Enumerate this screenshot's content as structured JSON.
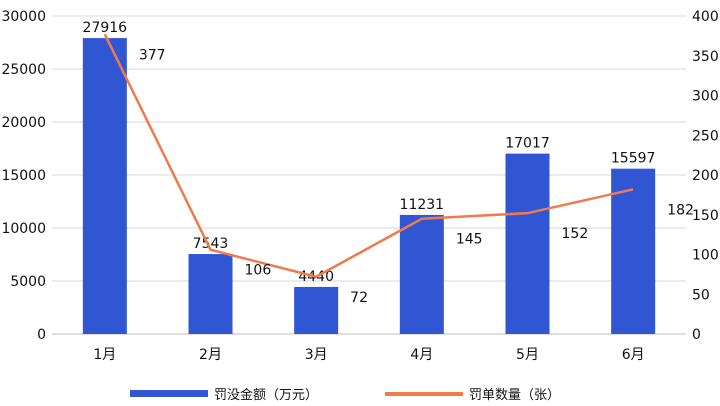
{
  "chart_data": {
    "type": "bar",
    "categories": [
      "1月",
      "2月",
      "3月",
      "4月",
      "5月",
      "6月"
    ],
    "series": [
      {
        "name": "罚没金额（万元）",
        "type": "bar",
        "axis": "left",
        "values": [
          27916,
          7543,
          4440,
          11231,
          17017,
          15597
        ],
        "labels": [
          "27916",
          "7543",
          "4440",
          "11231",
          "17017",
          "15597"
        ],
        "color": "#3056d3"
      },
      {
        "name": "罚单数量（张）",
        "type": "line",
        "axis": "right",
        "values": [
          377,
          106,
          72,
          145,
          152,
          182
        ],
        "labels": [
          "377",
          "106",
          "72",
          "145",
          "152",
          "182"
        ],
        "color": "#f07a4a"
      }
    ],
    "y_left": {
      "min": 0,
      "max": 30000,
      "ticks": [
        "0",
        "5000",
        "10000",
        "15000",
        "20000",
        "25000",
        "30000"
      ]
    },
    "y_right": {
      "min": 0,
      "max": 400,
      "ticks": [
        "0",
        "50",
        "100",
        "150",
        "200",
        "250",
        "300",
        "350",
        "400"
      ]
    },
    "grid": true,
    "legend_position": "bottom"
  }
}
